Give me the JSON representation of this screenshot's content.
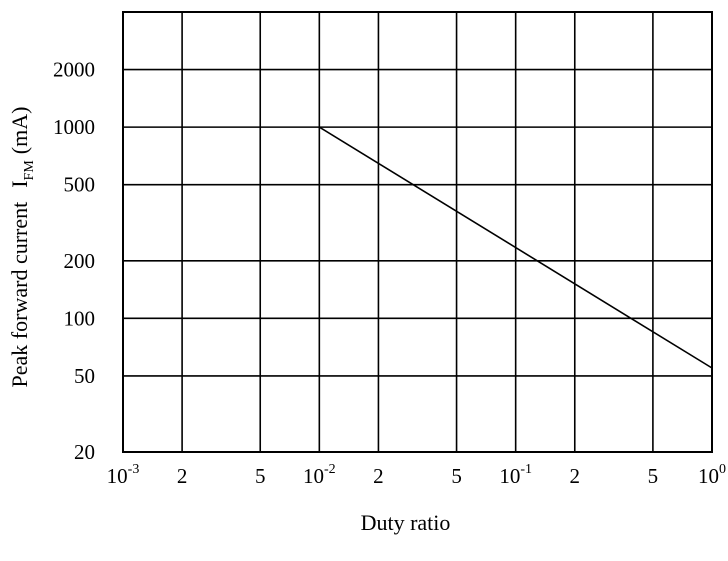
{
  "chart_data": {
    "type": "line",
    "xlabel": "Duty ratio",
    "ylabel": {
      "main": "Peak forward current",
      "symbol": "I",
      "subscript": "FM",
      "unit": "(mA)"
    },
    "x_scale": "log",
    "y_scale": "log",
    "xlim": [
      0.001,
      1
    ],
    "ylim": [
      20,
      4000
    ],
    "grid": true,
    "x_gridlines": [
      0.001,
      0.002,
      0.005,
      0.01,
      0.02,
      0.05,
      0.1,
      0.2,
      0.5,
      1
    ],
    "x_ticks": [
      {
        "value": 0.001,
        "base": "10",
        "exp": "-3"
      },
      {
        "value": 0.002,
        "label": "2"
      },
      {
        "value": 0.005,
        "label": "5"
      },
      {
        "value": 0.01,
        "base": "10",
        "exp": "-2"
      },
      {
        "value": 0.02,
        "label": "2"
      },
      {
        "value": 0.05,
        "label": "5"
      },
      {
        "value": 0.1,
        "base": "10",
        "exp": "-1"
      },
      {
        "value": 0.2,
        "label": "2"
      },
      {
        "value": 0.5,
        "label": "5"
      },
      {
        "value": 1,
        "base": "10",
        "exp": "0"
      }
    ],
    "y_ticks": [
      {
        "value": 20,
        "label": "20"
      },
      {
        "value": 50,
        "label": "50"
      },
      {
        "value": 100,
        "label": "100"
      },
      {
        "value": 200,
        "label": "200"
      },
      {
        "value": 500,
        "label": "500"
      },
      {
        "value": 1000,
        "label": "1000"
      },
      {
        "value": 2000,
        "label": "2000"
      }
    ],
    "series": [
      {
        "x": [
          0.01,
          1
        ],
        "y": [
          1000,
          55
        ]
      }
    ]
  }
}
